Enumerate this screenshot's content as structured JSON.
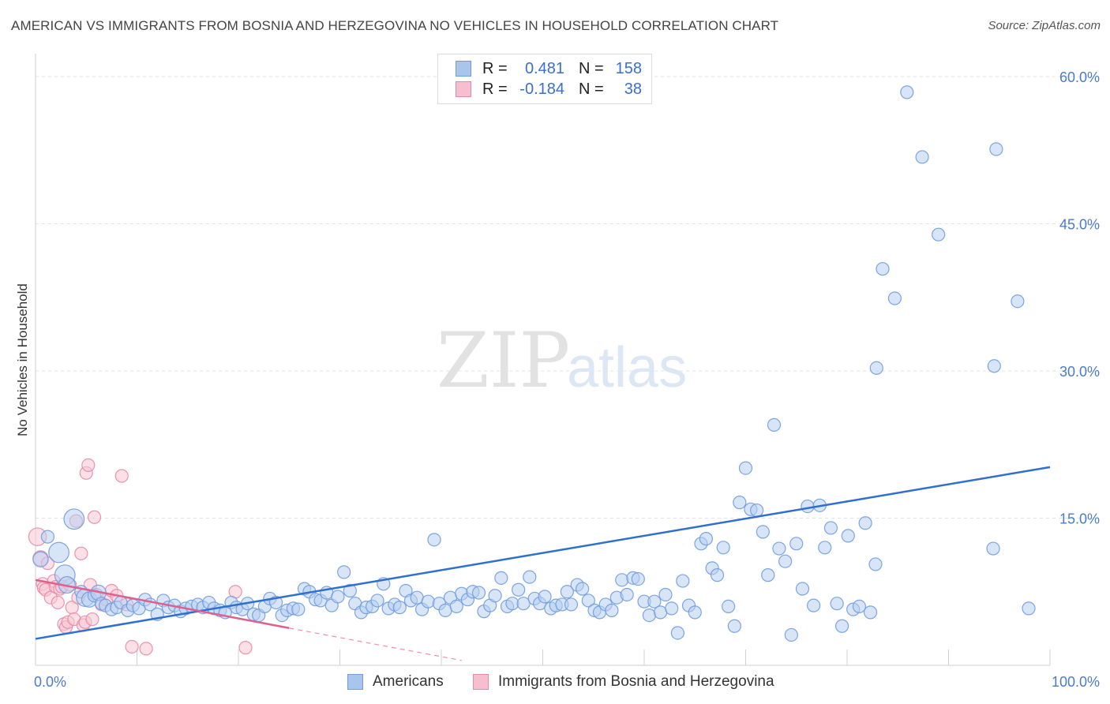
{
  "title": "AMERICAN VS IMMIGRANTS FROM BOSNIA AND HERZEGOVINA NO VEHICLES IN HOUSEHOLD CORRELATION CHART",
  "source": "Source: ZipAtlas.com",
  "watermark": {
    "zip": "ZIP",
    "atlas": "atlas"
  },
  "legend": {
    "rows": [
      {
        "r_label": "R =",
        "r_value": "0.481",
        "n_label": "N =",
        "n_value": "158",
        "color": "#a9c5ec",
        "border": "#6f9be0"
      },
      {
        "r_label": "R =",
        "r_value": "-0.184",
        "n_label": "N =",
        "n_value": "38",
        "color": "#f6bfd0",
        "border": "#e889a7"
      }
    ]
  },
  "bottom_legend": [
    {
      "label": "Americans",
      "color": "#a9c5ec",
      "border": "#6f9be0"
    },
    {
      "label": "Immigrants from Bosnia and Herzegovina",
      "color": "#f6bfd0",
      "border": "#e889a7"
    }
  ],
  "chart_data": {
    "type": "scatter",
    "xlabel": "",
    "ylabel": "No Vehicles in Household",
    "xlim": [
      0,
      100
    ],
    "ylim": [
      0,
      60
    ],
    "x_tick_labels": [
      {
        "value": 0,
        "label": "0.0%"
      },
      {
        "value": 100,
        "label": "100.0%"
      }
    ],
    "y_tick_labels": [
      {
        "value": 15,
        "label": "15.0%"
      },
      {
        "value": 30,
        "label": "30.0%"
      },
      {
        "value": 45,
        "label": "45.0%"
      },
      {
        "value": 60,
        "label": "60.0%"
      }
    ],
    "grid": true,
    "colors": {
      "americans": "#6f9be0",
      "americans_fill": "#b8d0f0",
      "bosnia": "#e889a7",
      "bosnia_fill": "#f7c6d5",
      "americans_line": "#2f6fd0",
      "bosnia_line": "#e0608d"
    },
    "series": [
      {
        "name": "Americans",
        "trend": {
          "x": [
            0,
            100
          ],
          "y": [
            2.7,
            20.2
          ]
        },
        "points": [
          [
            0.5,
            10.8,
            1.2
          ],
          [
            1.2,
            13.1,
            1
          ],
          [
            2.3,
            11.5,
            1.6
          ],
          [
            2.9,
            9.2,
            1.6
          ],
          [
            3.1,
            8.2,
            1.3
          ],
          [
            3.8,
            14.9,
            1.6
          ],
          [
            4.5,
            7.5,
            1
          ],
          [
            4.9,
            6.9,
            1.4
          ],
          [
            5.3,
            6.7,
            1.2
          ],
          [
            5.8,
            7.1,
            1
          ],
          [
            6.2,
            7.4,
            1.2
          ],
          [
            6.5,
            6.3,
            1
          ],
          [
            6.9,
            6.1,
            1
          ],
          [
            7.5,
            5.7,
            1
          ],
          [
            8.0,
            5.9,
            1
          ],
          [
            8.4,
            6.4,
            1
          ],
          [
            9.1,
            5.6,
            1
          ],
          [
            9.6,
            6.1,
            1
          ],
          [
            10.2,
            5.8,
            1
          ],
          [
            10.8,
            6.7,
            1
          ],
          [
            11.3,
            6.2,
            1
          ],
          [
            12.0,
            5.2,
            1
          ],
          [
            12.6,
            6.6,
            1
          ],
          [
            13.1,
            5.9,
            1
          ],
          [
            13.7,
            6.1,
            1
          ],
          [
            14.3,
            5.5,
            1
          ],
          [
            14.8,
            5.8,
            1
          ],
          [
            15.4,
            6.0,
            1
          ],
          [
            16.0,
            6.2,
            1
          ],
          [
            16.5,
            5.9,
            1
          ],
          [
            17.1,
            6.4,
            1
          ],
          [
            17.6,
            5.8,
            1
          ],
          [
            18.2,
            5.6,
            1
          ],
          [
            18.7,
            5.4,
            1
          ],
          [
            19.3,
            6.4,
            1
          ],
          [
            19.8,
            5.9,
            1
          ],
          [
            20.4,
            5.7,
            1
          ],
          [
            20.9,
            6.3,
            1
          ],
          [
            21.5,
            5.2,
            1
          ],
          [
            22.0,
            5.1,
            1
          ],
          [
            22.6,
            6.0,
            1
          ],
          [
            23.1,
            6.8,
            1
          ],
          [
            23.7,
            6.4,
            1
          ],
          [
            24.3,
            5.1,
            1
          ],
          [
            24.8,
            5.6,
            1
          ],
          [
            25.4,
            5.8,
            1
          ],
          [
            25.9,
            5.7,
            1
          ],
          [
            26.5,
            7.8,
            1
          ],
          [
            27.0,
            7.5,
            1
          ],
          [
            27.6,
            6.7,
            1
          ],
          [
            28.1,
            6.6,
            1
          ],
          [
            28.7,
            7.4,
            1
          ],
          [
            29.2,
            6.1,
            1
          ],
          [
            29.8,
            7.0,
            1
          ],
          [
            30.4,
            9.5,
            1
          ],
          [
            31.0,
            7.6,
            1
          ],
          [
            31.5,
            6.3,
            1
          ],
          [
            32.1,
            5.4,
            1
          ],
          [
            32.6,
            5.9,
            1
          ],
          [
            33.2,
            6.0,
            1
          ],
          [
            33.7,
            6.6,
            1
          ],
          [
            34.3,
            8.3,
            1
          ],
          [
            34.8,
            5.8,
            1
          ],
          [
            35.4,
            6.2,
            1
          ],
          [
            35.9,
            5.9,
            1
          ],
          [
            36.5,
            7.6,
            1
          ],
          [
            37.0,
            6.6,
            1
          ],
          [
            37.6,
            6.9,
            1
          ],
          [
            38.1,
            5.7,
            1
          ],
          [
            38.7,
            6.5,
            1
          ],
          [
            39.3,
            12.8,
            1
          ],
          [
            39.8,
            6.3,
            1
          ],
          [
            40.4,
            5.6,
            1
          ],
          [
            40.9,
            6.9,
            1
          ],
          [
            41.5,
            6.0,
            1
          ],
          [
            42.0,
            7.3,
            1
          ],
          [
            42.6,
            6.7,
            1
          ],
          [
            43.1,
            7.5,
            1
          ],
          [
            43.7,
            7.4,
            1
          ],
          [
            44.2,
            5.5,
            1
          ],
          [
            44.8,
            6.1,
            1
          ],
          [
            45.3,
            7.1,
            1
          ],
          [
            45.9,
            8.9,
            1
          ],
          [
            46.5,
            6.0,
            1
          ],
          [
            47.0,
            6.3,
            1
          ],
          [
            47.6,
            7.7,
            1
          ],
          [
            48.1,
            6.3,
            1
          ],
          [
            48.7,
            9.0,
            1
          ],
          [
            49.2,
            6.8,
            1
          ],
          [
            49.7,
            6.3,
            1
          ],
          [
            50.2,
            7.0,
            1
          ],
          [
            50.8,
            5.8,
            1
          ],
          [
            51.3,
            6.1,
            1
          ],
          [
            51.9,
            6.2,
            1
          ],
          [
            52.4,
            7.5,
            1
          ],
          [
            52.8,
            6.2,
            1
          ],
          [
            53.4,
            8.2,
            1
          ],
          [
            53.9,
            7.8,
            1
          ],
          [
            54.5,
            6.6,
            1
          ],
          [
            55.1,
            5.6,
            1
          ],
          [
            55.6,
            5.4,
            1
          ],
          [
            56.2,
            6.2,
            1
          ],
          [
            56.8,
            5.6,
            1
          ],
          [
            57.3,
            6.9,
            1
          ],
          [
            57.8,
            8.7,
            1
          ],
          [
            58.3,
            7.2,
            1
          ],
          [
            58.9,
            8.9,
            1
          ],
          [
            59.4,
            8.8,
            1
          ],
          [
            60.0,
            6.5,
            1
          ],
          [
            60.5,
            5.1,
            1
          ],
          [
            61.0,
            6.5,
            1
          ],
          [
            61.6,
            5.4,
            1
          ],
          [
            62.1,
            7.2,
            1
          ],
          [
            62.7,
            5.8,
            1
          ],
          [
            63.3,
            3.3,
            1
          ],
          [
            63.8,
            8.6,
            1
          ],
          [
            64.4,
            6.1,
            1
          ],
          [
            65.0,
            5.4,
            1
          ],
          [
            65.6,
            12.4,
            1
          ],
          [
            66.1,
            12.9,
            1
          ],
          [
            66.7,
            9.9,
            1
          ],
          [
            67.2,
            9.2,
            1
          ],
          [
            67.8,
            12.0,
            1
          ],
          [
            68.3,
            6.0,
            1
          ],
          [
            68.9,
            4.0,
            1
          ],
          [
            69.4,
            16.6,
            1
          ],
          [
            70.0,
            20.1,
            1
          ],
          [
            70.5,
            15.9,
            1
          ],
          [
            71.1,
            15.8,
            1
          ],
          [
            71.7,
            13.6,
            1
          ],
          [
            72.2,
            9.2,
            1
          ],
          [
            72.8,
            24.5,
            1
          ],
          [
            73.3,
            11.9,
            1
          ],
          [
            73.9,
            10.6,
            1
          ],
          [
            74.5,
            3.1,
            1
          ],
          [
            75.0,
            12.4,
            1
          ],
          [
            75.6,
            7.8,
            1
          ],
          [
            76.1,
            16.2,
            1
          ],
          [
            76.7,
            6.1,
            1
          ],
          [
            77.3,
            16.3,
            1
          ],
          [
            77.8,
            12.0,
            1
          ],
          [
            78.4,
            14.0,
            1
          ],
          [
            79.0,
            6.3,
            1
          ],
          [
            79.5,
            4.0,
            1
          ],
          [
            80.1,
            13.2,
            1
          ],
          [
            80.6,
            5.7,
            1
          ],
          [
            81.2,
            6.0,
            1
          ],
          [
            81.8,
            14.5,
            1
          ],
          [
            82.3,
            5.4,
            1
          ],
          [
            82.8,
            10.3,
            1
          ],
          [
            82.9,
            30.3,
            1
          ],
          [
            83.5,
            40.4,
            1
          ],
          [
            84.7,
            37.4,
            1
          ],
          [
            85.9,
            58.4,
            1
          ],
          [
            87.4,
            51.8,
            1
          ],
          [
            89.0,
            43.9,
            1
          ],
          [
            94.4,
            11.9,
            1
          ],
          [
            94.5,
            30.5,
            1
          ],
          [
            94.7,
            52.6,
            1
          ],
          [
            96.8,
            37.1,
            1
          ],
          [
            97.9,
            5.8,
            1
          ]
        ]
      },
      {
        "name": "Immigrants from Bosnia and Herzegovina",
        "trend": {
          "x": [
            0,
            25
          ],
          "y": [
            8.7,
            3.8
          ]
        },
        "trend_ext": {
          "x": [
            25,
            42
          ],
          "y": [
            3.8,
            0.5
          ]
        },
        "points": [
          [
            0.2,
            13.1,
            1.4
          ],
          [
            0.5,
            10.9,
            1.2
          ],
          [
            0.7,
            8.3,
            1
          ],
          [
            0.8,
            7.9,
            1
          ],
          [
            1.0,
            7.7,
            1
          ],
          [
            1.2,
            10.4,
            1
          ],
          [
            1.5,
            6.9,
            1
          ],
          [
            1.8,
            8.6,
            1
          ],
          [
            2.0,
            8.0,
            1
          ],
          [
            2.2,
            6.4,
            1
          ],
          [
            2.4,
            7.8,
            1
          ],
          [
            2.6,
            8.0,
            1
          ],
          [
            2.8,
            4.2,
            1
          ],
          [
            3.0,
            3.9,
            1
          ],
          [
            3.2,
            4.4,
            1
          ],
          [
            3.4,
            8.2,
            1
          ],
          [
            3.6,
            5.9,
            1
          ],
          [
            3.8,
            4.7,
            1
          ],
          [
            4.0,
            14.7,
            1
          ],
          [
            4.2,
            6.9,
            1
          ],
          [
            4.5,
            11.4,
            1
          ],
          [
            4.7,
            4.1,
            1
          ],
          [
            4.9,
            4.4,
            1
          ],
          [
            5.0,
            19.6,
            1
          ],
          [
            5.2,
            20.4,
            1
          ],
          [
            5.4,
            8.2,
            1
          ],
          [
            5.6,
            4.7,
            1
          ],
          [
            5.8,
            15.1,
            1
          ],
          [
            6.0,
            7.2,
            1
          ],
          [
            6.5,
            6.2,
            1
          ],
          [
            7.0,
            6.7,
            1
          ],
          [
            7.5,
            7.6,
            1
          ],
          [
            8.0,
            7.1,
            1
          ],
          [
            8.5,
            19.3,
            1
          ],
          [
            9.0,
            6.2,
            1
          ],
          [
            9.5,
            1.9,
            1
          ],
          [
            10.9,
            1.7,
            1
          ],
          [
            19.7,
            7.5,
            1
          ],
          [
            20.7,
            1.8,
            1
          ]
        ]
      }
    ]
  }
}
